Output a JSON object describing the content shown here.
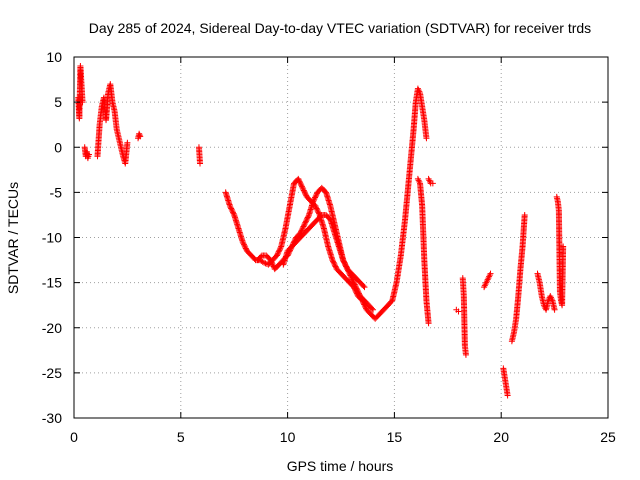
{
  "chart_data": {
    "type": "scatter",
    "title": "Day 285 of 2024, Sidereal Day-to-day VTEC variation (SDTVAR) for receiver trds",
    "xlabel": "GPS time / hours",
    "ylabel": "SDTVAR / TECUs",
    "xlim": [
      0,
      25
    ],
    "ylim": [
      -30,
      10
    ],
    "x_ticks": [
      0,
      5,
      10,
      15,
      20,
      25
    ],
    "y_ticks": [
      -30,
      -25,
      -20,
      -15,
      -10,
      -5,
      0,
      5,
      10
    ],
    "grid": true,
    "marker": "+",
    "series": [
      {
        "name": "trds",
        "color": "#ff0000",
        "segments": [
          {
            "x": [
              0.2,
              0.25,
              0.3,
              0.35,
              0.4
            ],
            "y": [
              5.5,
              3.2,
              9.0,
              7.0,
              5.0
            ]
          },
          {
            "x": [
              0.5,
              0.55,
              0.6,
              0.65,
              0.7
            ],
            "y": [
              0.0,
              -1.0,
              -0.5,
              -1.2,
              -0.8
            ]
          },
          {
            "x": [
              1.1,
              1.2,
              1.3,
              1.4,
              1.5,
              1.6,
              1.7,
              1.8,
              1.9,
              2.0,
              2.1,
              2.2,
              2.3,
              2.4,
              2.5
            ],
            "y": [
              -1.0,
              2.5,
              4.5,
              5.5,
              3.0,
              6.0,
              7.0,
              5.0,
              4.0,
              2.0,
              1.0,
              0.0,
              -1.0,
              -1.8,
              0.5
            ]
          },
          {
            "x": [
              3.0,
              3.05,
              3.1
            ],
            "y": [
              1.0,
              1.5,
              1.2
            ]
          },
          {
            "x": [
              5.85,
              5.9
            ],
            "y": [
              0.0,
              -1.8
            ]
          },
          {
            "x": [
              7.1,
              7.3,
              7.5,
              7.7,
              7.9,
              8.1,
              8.3,
              8.5,
              8.7,
              8.9,
              9.1,
              9.3,
              9.5,
              9.7,
              9.9,
              10.1,
              10.3,
              10.5,
              10.7,
              10.9,
              11.1,
              11.3,
              11.5,
              11.7,
              11.9,
              12.1,
              12.3,
              12.5,
              12.7,
              12.9,
              13.1,
              13.3,
              13.5,
              13.7,
              13.9,
              14.1,
              14.3,
              14.5,
              14.7,
              14.9,
              15.1,
              15.3,
              15.5,
              15.7,
              15.9,
              16.0,
              16.1,
              16.2,
              16.3,
              16.4,
              16.5
            ],
            "y": [
              -5.0,
              -6.5,
              -7.5,
              -9.0,
              -10.5,
              -11.5,
              -12.0,
              -12.5,
              -12.5,
              -12.8,
              -13.0,
              -12.5,
              -12.0,
              -11.0,
              -9.0,
              -6.5,
              -4.0,
              -3.5,
              -4.5,
              -5.5,
              -6.0,
              -6.5,
              -7.5,
              -9.0,
              -11.0,
              -12.5,
              -13.5,
              -14.0,
              -14.5,
              -15.0,
              -15.5,
              -16.5,
              -17.0,
              -18.0,
              -18.5,
              -19.0,
              -18.5,
              -18.0,
              -17.5,
              -17.0,
              -15.0,
              -12.0,
              -8.0,
              -3.0,
              2.0,
              5.0,
              6.5,
              6.0,
              4.5,
              3.0,
              1.0
            ]
          },
          {
            "x": [
              8.6,
              8.8,
              9.0,
              9.2,
              9.4,
              9.6,
              9.8,
              10.0,
              10.2,
              10.4,
              10.6,
              10.8,
              11.0,
              11.2,
              11.4,
              11.6,
              11.8,
              12.0,
              12.2,
              12.4,
              12.6,
              12.8,
              13.0,
              13.2,
              13.4,
              13.6,
              13.8,
              14.0
            ],
            "y": [
              -12.5,
              -12.0,
              -12.0,
              -12.5,
              -13.5,
              -13.0,
              -12.5,
              -12.0,
              -11.0,
              -10.0,
              -9.5,
              -8.5,
              -7.5,
              -6.0,
              -5.0,
              -4.5,
              -5.0,
              -6.5,
              -8.5,
              -10.5,
              -12.5,
              -13.5,
              -14.5,
              -15.5,
              -16.5,
              -17.0,
              -17.5,
              -18.0
            ]
          },
          {
            "x": [
              9.8,
              10.0,
              10.2,
              10.4,
              10.6,
              10.8,
              11.0,
              11.2,
              11.4,
              11.6,
              11.8,
              12.0,
              12.2,
              12.4,
              12.6,
              12.8,
              13.0,
              13.2,
              13.4,
              13.6
            ],
            "y": [
              -13.0,
              -11.5,
              -11.0,
              -10.5,
              -10.0,
              -9.5,
              -9.0,
              -8.5,
              -8.0,
              -7.5,
              -7.5,
              -8.0,
              -9.5,
              -11.0,
              -12.5,
              -13.5,
              -14.0,
              -14.5,
              -15.0,
              -15.5
            ]
          },
          {
            "x": [
              16.1,
              16.2,
              16.3,
              16.4,
              16.5,
              16.6
            ],
            "y": [
              -3.5,
              -4.0,
              -6.5,
              -12.5,
              -17.0,
              -19.5
            ]
          },
          {
            "x": [
              16.6,
              16.7,
              16.8
            ],
            "y": [
              -3.5,
              -4.0,
              -4.0
            ]
          },
          {
            "x": [
              17.9,
              18.0
            ],
            "y": [
              -18.0,
              -18.2
            ]
          },
          {
            "x": [
              18.2,
              18.25,
              18.3,
              18.35
            ],
            "y": [
              -14.5,
              -16.5,
              -22.0,
              -23.0
            ]
          },
          {
            "x": [
              19.2,
              19.3,
              19.4,
              19.5
            ],
            "y": [
              -15.5,
              -15.0,
              -14.5,
              -14.0
            ]
          },
          {
            "x": [
              20.1,
              20.2,
              20.3
            ],
            "y": [
              -24.5,
              -26.0,
              -27.5
            ]
          },
          {
            "x": [
              20.5,
              20.6,
              20.7,
              20.8,
              20.9,
              21.0,
              21.1
            ],
            "y": [
              -21.5,
              -20.5,
              -19.0,
              -16.5,
              -13.5,
              -11.0,
              -7.5
            ]
          },
          {
            "x": [
              21.7,
              21.8,
              21.9,
              22.0,
              22.1,
              22.2,
              22.3,
              22.4,
              22.5
            ],
            "y": [
              -14.0,
              -15.0,
              -16.5,
              -17.5,
              -18.0,
              -17.0,
              -16.5,
              -17.0,
              -18.0
            ]
          },
          {
            "x": [
              22.6,
              22.65,
              22.7,
              22.75,
              22.8,
              22.85,
              22.9
            ],
            "y": [
              -5.5,
              -6.0,
              -7.0,
              -16.0,
              -17.0,
              -17.5,
              -11.0
            ]
          }
        ]
      }
    ]
  }
}
